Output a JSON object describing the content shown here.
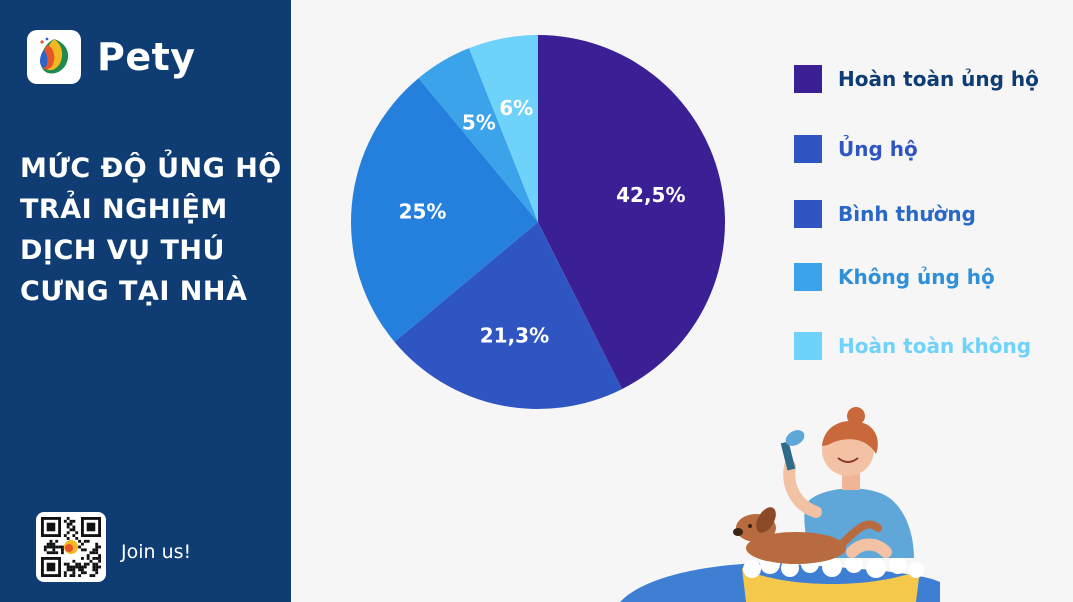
{
  "brand": {
    "name": "Pety",
    "logo_icon": "pety-logo-icon"
  },
  "title_lines": [
    "MỨC ĐỘ ỦNG HỘ",
    "TRẢI NGHIỆM",
    "DỊCH VỤ THÚ",
    "CƯNG TẠI NHÀ"
  ],
  "footer": {
    "qr_icon": "qr-code-icon",
    "join_text": "Join us!"
  },
  "colors": {
    "sidebar_bg": "#0f3d73",
    "slices": [
      "#3a1f95",
      "#2f55c2",
      "#2580dd",
      "#3ba3ea",
      "#6fd2fb"
    ]
  },
  "chart_data": {
    "type": "pie",
    "title": "MỨC ĐỘ ỦNG HỘ TRẢI NGHIỆM DỊCH VỤ THÚ CƯNG TẠI NHÀ",
    "legend_position": "right",
    "slices": [
      {
        "name": "Hoàn toàn ủng hộ",
        "value": 42.5,
        "label": "42,5%",
        "color": "#3a1f95",
        "legend_color": "#3a1f95",
        "legend_text_color": "#0f3d73"
      },
      {
        "name": "Ủng hộ",
        "value": 21.3,
        "label": "21,3%",
        "color": "#2f55c2",
        "legend_color": "#2f55c2",
        "legend_text_color": "#2f55c2"
      },
      {
        "name": "Bình thường",
        "value": 25,
        "label": "25%",
        "color": "#2580dd",
        "legend_color": "#2f55c2",
        "legend_text_color": "#2a68c8"
      },
      {
        "name": "Không ủng hộ",
        "value": 5,
        "label": "5%",
        "color": "#3ba3ea",
        "legend_color": "#3ba3ea",
        "legend_text_color": "#2f8fd8"
      },
      {
        "name": "Hoàn toàn không",
        "value": 6,
        "label": "6%",
        "color": "#6fd2fb",
        "legend_color": "#6fd2fb",
        "legend_text_color": "#6fd2fb"
      }
    ]
  }
}
